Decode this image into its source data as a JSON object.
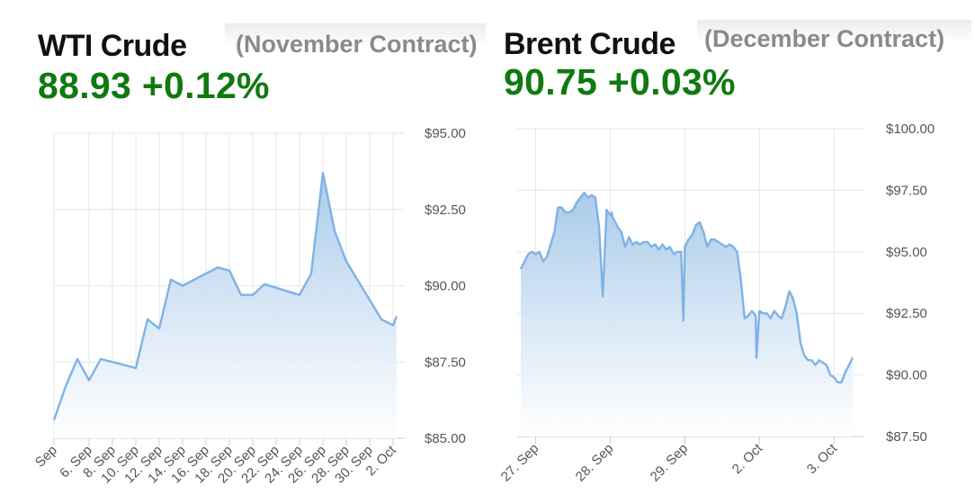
{
  "charts": [
    {
      "title": "WTI Crude",
      "subtitle": "(November Contract)",
      "price": "88.93",
      "change": "+0.12%",
      "price_color": "#0f7a0f"
    },
    {
      "title": "Brent Crude",
      "subtitle": "(December Contract)",
      "price": "90.75",
      "change": "+0.03%",
      "price_color": "#0f7a0f"
    }
  ],
  "colors": {
    "line": "#7fb2e5",
    "fill_top": "#a9cbea",
    "fill_bottom": "#ffffff",
    "grid": "#e6e6e6"
  },
  "chart_data": [
    {
      "type": "area",
      "title": "WTI Crude",
      "ylim": [
        85,
        95
      ],
      "yticks": [
        "$85.00",
        "$87.50",
        "$90.00",
        "$92.50",
        "$95.00"
      ],
      "ytick_values": [
        85,
        87.5,
        90,
        92.5,
        95
      ],
      "xtick_labels": [
        "Sep",
        "6. Sep",
        "8. Sep",
        "10. Sep",
        "12. Sep",
        "14. Sep",
        "16. Sep",
        "18. Sep",
        "20. Sep",
        "22. Sep",
        "24. Sep",
        "26. Sep",
        "28. Sep",
        "30. Sep",
        "2. Oct"
      ],
      "x": [
        3,
        5,
        6,
        7,
        8,
        11,
        12,
        13,
        14,
        15,
        18,
        19,
        20,
        21,
        22,
        25,
        26,
        27,
        28,
        29,
        2,
        3,
        4
      ],
      "points_day_index": [
        0,
        1,
        2,
        3,
        4,
        7,
        8,
        9,
        10,
        11,
        14,
        15,
        16,
        17,
        18,
        21,
        22,
        23,
        24,
        25,
        28,
        29,
        29.3
      ],
      "values": [
        85.6,
        86.7,
        87.6,
        86.9,
        87.6,
        87.3,
        88.9,
        88.6,
        90.2,
        90.0,
        90.6,
        90.5,
        89.7,
        89.7,
        90.05,
        89.7,
        90.4,
        93.7,
        91.8,
        90.8,
        88.9,
        88.7,
        89.0
      ],
      "grid": true
    },
    {
      "type": "area",
      "title": "Brent Crude",
      "ylim": [
        87.5,
        100
      ],
      "yticks": [
        "$87.50",
        "$90.00",
        "$92.50",
        "$95.00",
        "$97.50",
        "$100.00"
      ],
      "ytick_values": [
        87.5,
        90,
        92.5,
        95,
        97.5,
        100
      ],
      "xtick_labels": [
        "27. Sep",
        "28. Sep",
        "29. Sep",
        "2. Oct",
        "3. Oct"
      ],
      "xtick_positions": [
        0.2,
        1.2,
        2.2,
        3.2,
        4.2
      ],
      "x_range": [
        0,
        4.45
      ],
      "x": [
        0.0,
        0.05,
        0.1,
        0.15,
        0.2,
        0.25,
        0.3,
        0.35,
        0.4,
        0.45,
        0.5,
        0.55,
        0.6,
        0.65,
        0.7,
        0.75,
        0.8,
        0.85,
        0.9,
        0.95,
        1.0,
        1.05,
        1.1,
        1.15,
        1.2,
        1.22,
        1.23,
        1.25,
        1.3,
        1.35,
        1.4,
        1.45,
        1.5,
        1.55,
        1.6,
        1.65,
        1.7,
        1.75,
        1.8,
        1.85,
        1.9,
        1.95,
        2.0,
        2.05,
        2.1,
        2.15,
        2.18,
        2.2,
        2.25,
        2.3,
        2.35,
        2.4,
        2.45,
        2.5,
        2.55,
        2.6,
        2.65,
        2.7,
        2.75,
        2.8,
        2.85,
        2.9,
        2.95,
        3.0,
        3.05,
        3.1,
        3.15,
        3.16,
        3.2,
        3.25,
        3.3,
        3.35,
        3.4,
        3.45,
        3.5,
        3.55,
        3.6,
        3.65,
        3.7,
        3.75,
        3.8,
        3.85,
        3.9,
        3.95,
        4.0,
        4.05,
        4.1,
        4.15,
        4.2,
        4.25,
        4.3,
        4.35,
        4.4,
        4.45
      ],
      "values": [
        94.3,
        94.6,
        94.9,
        95.0,
        94.9,
        95.0,
        94.6,
        94.8,
        95.3,
        95.8,
        96.8,
        96.8,
        96.6,
        96.6,
        96.7,
        97.0,
        97.2,
        97.4,
        97.2,
        97.3,
        97.2,
        96.0,
        93.2,
        96.7,
        96.5,
        96.6,
        96.4,
        96.3,
        96.0,
        95.8,
        95.2,
        95.6,
        95.3,
        95.4,
        95.3,
        95.4,
        95.4,
        95.2,
        95.3,
        95.1,
        95.3,
        95.1,
        95.2,
        94.9,
        95.0,
        95.0,
        92.2,
        95.2,
        95.5,
        95.7,
        96.1,
        96.2,
        95.8,
        95.2,
        95.5,
        95.5,
        95.4,
        95.3,
        95.2,
        95.3,
        95.2,
        95.0,
        93.9,
        92.3,
        92.4,
        92.6,
        92.4,
        90.7,
        92.6,
        92.5,
        92.5,
        92.3,
        92.6,
        92.4,
        92.3,
        92.8,
        93.4,
        93.1,
        92.5,
        91.3,
        90.8,
        90.6,
        90.6,
        90.4,
        90.6,
        90.5,
        90.4,
        90.0,
        89.9,
        89.7,
        89.7,
        90.1,
        90.4,
        90.7
      ],
      "grid": true
    }
  ]
}
